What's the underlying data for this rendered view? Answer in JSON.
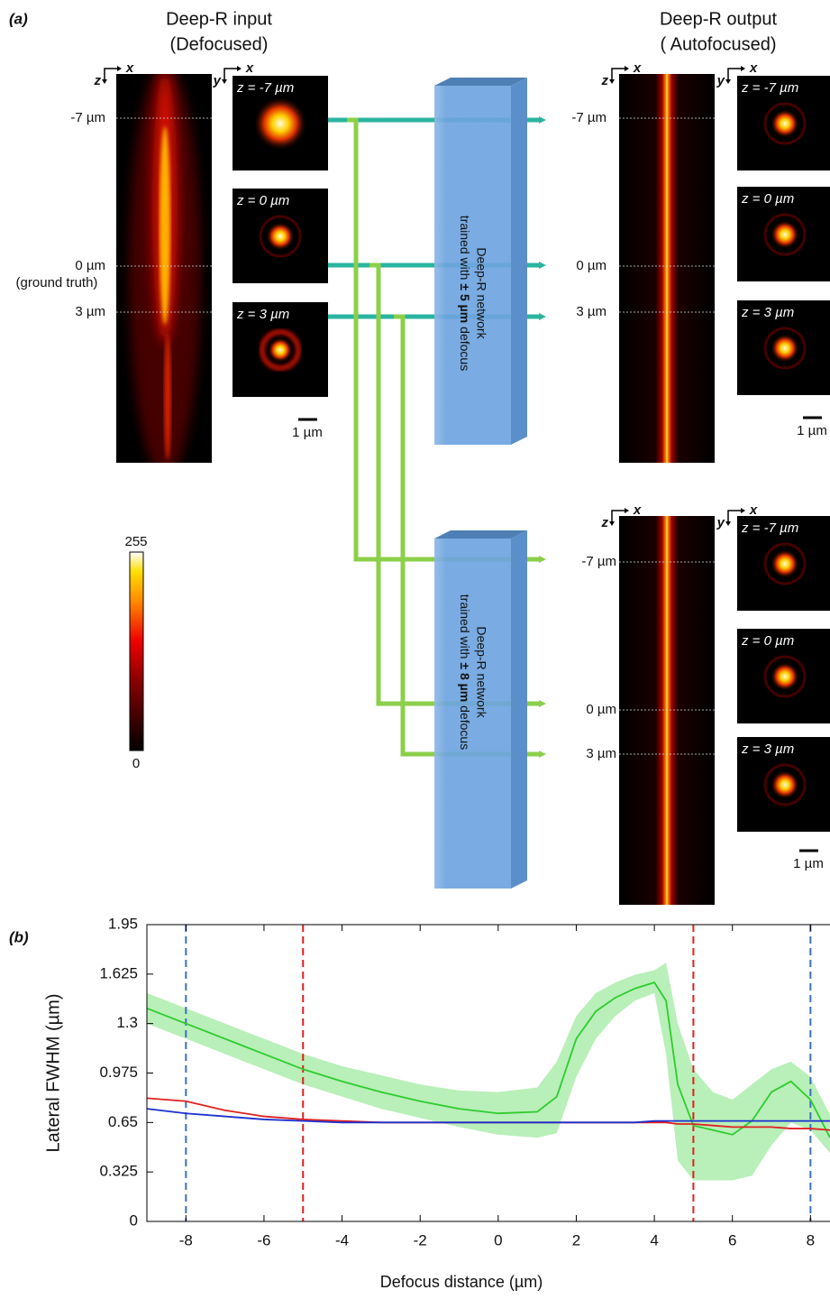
{
  "panel_a": {
    "label": "(a)",
    "axes": {
      "x": "x",
      "z": "z",
      "y": "y"
    },
    "input": {
      "title": [
        "Deep-R input",
        "(Defocused)"
      ],
      "depths": [
        "-7 µm",
        "0 µm",
        "3 µm"
      ],
      "ground_truth": "(ground truth)",
      "insets": [
        "z = -7 µm",
        "z = 0 µm",
        "z = 3 µm"
      ],
      "scale_bar": "1 µm"
    },
    "outputs": [
      {
        "title": [
          "Deep-R output",
          "( Autofocused)"
        ],
        "depths": [
          "-7 µm",
          "0 µm",
          "3 µm"
        ],
        "insets": [
          "z = -7 µm",
          "z = 0 µm",
          "z = 3 µm"
        ],
        "scale_bar": "1 µm"
      },
      {
        "depths": [
          "-7 µm",
          "0 µm",
          "3 µm"
        ],
        "insets": [
          "z = -7 µm",
          "z = 0 µm",
          "z = 3 µm"
        ],
        "scale_bar": "1 µm"
      }
    ],
    "networks": [
      {
        "name": "Deep-R network",
        "trained": "trained with",
        "range": "± 5 µm",
        "defocus": "defocus"
      },
      {
        "name": "Deep-R network",
        "trained": "trained with",
        "range": "± 8 µm",
        "defocus": "defocus"
      }
    ],
    "colorbar": {
      "max": 255,
      "min": 0
    }
  },
  "chart_data": {
    "type": "line",
    "panel_label": "(b)",
    "x_label": "Defocus distance (µm)",
    "y_label": "Lateral FWHM (µm)",
    "x": [
      -9,
      -8,
      -7,
      -6,
      -5,
      -4,
      -3,
      -2,
      -1,
      0,
      1,
      1.5,
      2,
      2.5,
      3,
      3.5,
      4,
      4.3,
      4.6,
      5,
      5.5,
      6,
      6.5,
      7,
      7.5,
      8,
      8.5
    ],
    "series": [
      {
        "color": "#2ecc2e",
        "band_color": "#9be89b",
        "values": [
          1.4,
          1.3,
          1.2,
          1.1,
          1.0,
          0.92,
          0.85,
          0.79,
          0.74,
          0.71,
          0.72,
          0.82,
          1.2,
          1.38,
          1.47,
          1.53,
          1.57,
          1.45,
          0.9,
          0.63,
          0.6,
          0.57,
          0.66,
          0.85,
          0.92,
          0.8,
          0.55
        ],
        "band_lower": [
          1.3,
          1.2,
          1.1,
          1.0,
          0.9,
          0.82,
          0.74,
          0.68,
          0.62,
          0.57,
          0.55,
          0.58,
          0.95,
          1.2,
          1.35,
          1.45,
          1.5,
          1.1,
          0.4,
          0.27,
          0.27,
          0.27,
          0.3,
          0.5,
          0.65,
          0.6,
          0.45
        ],
        "band_upper": [
          1.5,
          1.4,
          1.3,
          1.2,
          1.1,
          1.02,
          0.96,
          0.9,
          0.86,
          0.85,
          0.88,
          1.05,
          1.35,
          1.5,
          1.57,
          1.62,
          1.65,
          1.7,
          1.3,
          1.0,
          0.85,
          0.8,
          0.9,
          1.0,
          1.05,
          0.95,
          0.7
        ]
      },
      {
        "color": "#e02020",
        "values": [
          0.81,
          0.79,
          0.73,
          0.69,
          0.67,
          0.66,
          0.65,
          0.65,
          0.65,
          0.65,
          0.65,
          0.65,
          0.65,
          0.65,
          0.65,
          0.65,
          0.65,
          0.65,
          0.64,
          0.64,
          0.63,
          0.62,
          0.62,
          0.62,
          0.61,
          0.61,
          0.6
        ]
      },
      {
        "color": "#1a2fd0",
        "values": [
          0.74,
          0.71,
          0.69,
          0.67,
          0.66,
          0.65,
          0.65,
          0.65,
          0.65,
          0.65,
          0.65,
          0.65,
          0.65,
          0.65,
          0.65,
          0.65,
          0.66,
          0.66,
          0.66,
          0.66,
          0.66,
          0.66,
          0.66,
          0.66,
          0.66,
          0.66,
          0.66
        ]
      }
    ],
    "vlines": [
      {
        "x": -8,
        "color": "#3b6fc4"
      },
      {
        "x": -5,
        "color": "#e02020"
      },
      {
        "x": 5,
        "color": "#e02020"
      },
      {
        "x": 8,
        "color": "#3b6fc4"
      }
    ],
    "xlim": [
      -9,
      8.5
    ],
    "ylim": [
      0,
      1.95
    ],
    "xticks": [
      -8,
      -6,
      -4,
      -2,
      0,
      2,
      4,
      6,
      8
    ],
    "yticks": [
      0,
      0.325,
      0.65,
      0.975,
      1.3,
      1.625,
      1.95
    ]
  }
}
